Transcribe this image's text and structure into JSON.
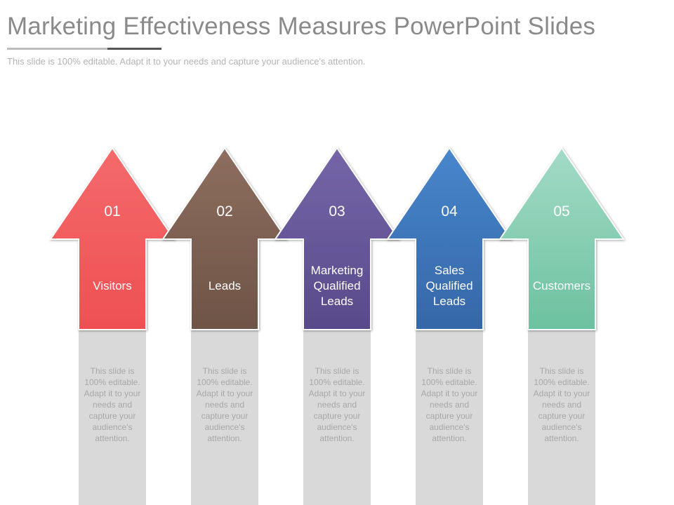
{
  "header": {
    "title": "Marketing Effectiveness Measures PowerPoint Slides",
    "subtitle": "This slide is 100% editable. Adapt it to your needs and capture your audience's attention."
  },
  "steps": [
    {
      "number": "01",
      "label": "Visitors",
      "description": "This slide is 100% editable. Adapt it to your needs and capture your audience's attention.",
      "color_top": "#f46a6c",
      "color_bottom": "#ef5052"
    },
    {
      "number": "02",
      "label": "Leads",
      "description": "This slide is 100% editable. Adapt it to your needs and capture your audience's attention.",
      "color_top": "#8d6e5f",
      "color_bottom": "#6e5446"
    },
    {
      "number": "03",
      "label": "Marketing Qualified Leads",
      "description": "This slide is 100% editable. Adapt it to your needs and capture your audience's attention.",
      "color_top": "#7566a8",
      "color_bottom": "#584a8b"
    },
    {
      "number": "04",
      "label": "Sales Qualified Leads",
      "description": "This slide is 100% editable. Adapt it to your needs and capture your audience's attention.",
      "color_top": "#4886cc",
      "color_bottom": "#3567a8"
    },
    {
      "number": "05",
      "label": "Customers",
      "description": "This slide is 100% editable. Adapt it to your needs and capture your audience's attention.",
      "color_top": "#a3dbc6",
      "color_bottom": "#6cc19f"
    }
  ],
  "colors": {
    "title": "#8a8a8a",
    "subtitle": "#b4b4b4",
    "stem_gray": "#d9d9d9",
    "description_text": "#a8a8a8"
  }
}
